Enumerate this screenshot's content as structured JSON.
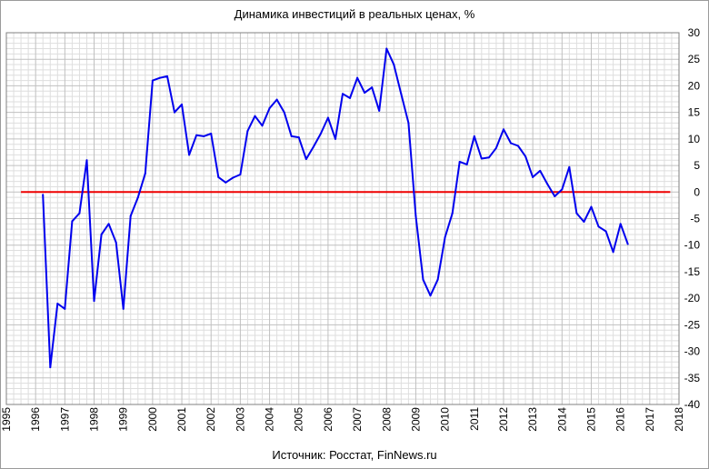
{
  "chart_data": {
    "type": "line",
    "title": "Динамика инвестиций в реальных ценах, %",
    "source": "Источник: Росстат, FinNews.ru",
    "xlabel": "",
    "ylabel": "",
    "xlim": [
      1995,
      2018
    ],
    "ylim": [
      -40,
      30
    ],
    "x_ticks": [
      "1995",
      "1996",
      "1997",
      "1998",
      "1999",
      "2000",
      "2001",
      "2002",
      "2003",
      "2004",
      "2005",
      "2006",
      "2007",
      "2008",
      "2009",
      "2010",
      "2011",
      "2012",
      "2013",
      "2014",
      "2015",
      "2016",
      "2017",
      "2018"
    ],
    "y_ticks": [
      "30",
      "25",
      "20",
      "15",
      "10",
      "5",
      "0",
      "-5",
      "-10",
      "-15",
      "-20",
      "-25",
      "-30",
      "-35",
      "-40"
    ],
    "grid": true,
    "axis_side": "right",
    "colors": {
      "series": "#0000ee",
      "reference": "#ee0000",
      "grid": "#c0c0c0",
      "grid_minor": "#dedede"
    },
    "series": [
      {
        "x": [
          1996.25,
          1996.5,
          1996.75,
          1997.0,
          1997.25,
          1997.5,
          1997.75,
          1998.0,
          1998.25,
          1998.5,
          1998.75,
          1999.0,
          1999.25,
          1999.5,
          1999.75,
          2000.0,
          2000.25,
          2000.5,
          2000.75,
          2001.0,
          2001.25,
          2001.5,
          2001.75,
          2002.0,
          2002.25,
          2002.5,
          2002.75,
          2003.0,
          2003.25,
          2003.5,
          2003.75,
          2004.0,
          2004.25,
          2004.5,
          2004.75,
          2005.0,
          2005.25,
          2005.5,
          2005.75,
          2006.0,
          2006.25,
          2006.5,
          2006.75,
          2007.0,
          2007.25,
          2007.5,
          2007.75,
          2008.0,
          2008.25,
          2008.5,
          2008.75,
          2009.0,
          2009.25,
          2009.5,
          2009.75,
          2010.0,
          2010.25,
          2010.5,
          2010.75,
          2011.0,
          2011.25,
          2011.5,
          2011.75,
          2012.0,
          2012.25,
          2012.5,
          2012.75,
          2013.0,
          2013.25,
          2013.5,
          2013.75,
          2014.0,
          2014.25,
          2014.5,
          2014.75,
          2015.0,
          2015.25,
          2015.5,
          2015.75,
          2016.0,
          2016.25
        ],
        "y": [
          -0.5,
          -33,
          -21,
          -22,
          -5.5,
          -4,
          6,
          -20.5,
          -8,
          -6,
          -9.5,
          -22,
          -4.5,
          -1,
          3.5,
          21,
          21.5,
          21.8,
          15,
          16.5,
          7,
          10.7,
          10.5,
          11,
          2.8,
          1.8,
          2.7,
          3.3,
          11.5,
          14.3,
          12.5,
          15.8,
          17.4,
          15,
          10.5,
          10.3,
          6.2,
          8.5,
          11,
          14,
          10,
          18.5,
          17.7,
          21.5,
          18.7,
          19.7,
          15.3,
          27,
          24,
          18.5,
          13,
          -4.5,
          -16.5,
          -19.5,
          -16.5,
          -8.5,
          -4,
          5.7,
          5.2,
          10.5,
          6.3,
          6.5,
          8.3,
          11.8,
          9.2,
          8.7,
          6.7,
          2.8,
          4,
          1.5,
          -0.8,
          0.5,
          4.7,
          -4,
          -5.6,
          -2.8,
          -6.5,
          -7.4,
          -11.3,
          -6,
          -9.8
        ]
      }
    ],
    "reference_line": {
      "y": 0,
      "x_start": 1995.5,
      "x_end": 2017.7
    }
  }
}
